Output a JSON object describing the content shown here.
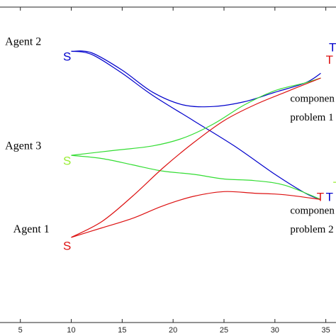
{
  "chart_data": {
    "type": "line",
    "xlim": [
      3,
      36
    ],
    "ylim": [
      0,
      1
    ],
    "x_ticks": [
      5,
      10,
      15,
      20,
      25,
      30,
      35
    ],
    "grid": false,
    "series": [
      {
        "color": "#0000cc",
        "points": [
          [
            10,
            0.86
          ],
          [
            12,
            0.85
          ],
          [
            15,
            0.79
          ],
          [
            18,
            0.72
          ],
          [
            22,
            0.64
          ],
          [
            26,
            0.56
          ],
          [
            30,
            0.47
          ],
          [
            33,
            0.41
          ],
          [
            34.5,
            0.39
          ]
        ]
      },
      {
        "color": "#0000cc",
        "points": [
          [
            10,
            0.86
          ],
          [
            12,
            0.855
          ],
          [
            15,
            0.8
          ],
          [
            18,
            0.73
          ],
          [
            21,
            0.69
          ],
          [
            24,
            0.685
          ],
          [
            27,
            0.7
          ],
          [
            30,
            0.73
          ],
          [
            33,
            0.76
          ],
          [
            34.5,
            0.79
          ]
        ]
      },
      {
        "color": "#33dd33",
        "points": [
          [
            10,
            0.53
          ],
          [
            14,
            0.545
          ],
          [
            18,
            0.56
          ],
          [
            21,
            0.585
          ],
          [
            24,
            0.63
          ],
          [
            27,
            0.69
          ],
          [
            30,
            0.735
          ],
          [
            33,
            0.76
          ],
          [
            34.5,
            0.775
          ]
        ]
      },
      {
        "color": "#33dd33",
        "points": [
          [
            10,
            0.53
          ],
          [
            13,
            0.52
          ],
          [
            16,
            0.5
          ],
          [
            19,
            0.48
          ],
          [
            22,
            0.47
          ],
          [
            25,
            0.455
          ],
          [
            28,
            0.45
          ],
          [
            31,
            0.435
          ],
          [
            34.5,
            0.39
          ]
        ]
      },
      {
        "color": "#dd1111",
        "points": [
          [
            10,
            0.27
          ],
          [
            13,
            0.32
          ],
          [
            16,
            0.4
          ],
          [
            19,
            0.49
          ],
          [
            22,
            0.57
          ],
          [
            25,
            0.64
          ],
          [
            28,
            0.69
          ],
          [
            31,
            0.73
          ],
          [
            34.5,
            0.775
          ]
        ]
      },
      {
        "color": "#dd1111",
        "points": [
          [
            10,
            0.27
          ],
          [
            13,
            0.3
          ],
          [
            16,
            0.33
          ],
          [
            19,
            0.37
          ],
          [
            22,
            0.4
          ],
          [
            25,
            0.415
          ],
          [
            28,
            0.41
          ],
          [
            31,
            0.405
          ],
          [
            34.5,
            0.39
          ]
        ]
      }
    ],
    "agents": [
      {
        "label": "Agent 2",
        "x": 3.5,
        "y": 0.88
      },
      {
        "label": "Agent 3",
        "x": 3.5,
        "y": 0.55
      },
      {
        "label": "Agent 1",
        "x": 4.3,
        "y": 0.285
      }
    ],
    "markers": [
      {
        "text": "S",
        "color": "#0000cc",
        "x": 9.2,
        "y": 0.83
      },
      {
        "text": "S",
        "color": "#99ee33",
        "x": 9.2,
        "y": 0.5
      },
      {
        "text": "S",
        "color": "#dd1111",
        "x": 9.2,
        "y": 0.23
      },
      {
        "text": "T",
        "color": "#0000cc",
        "x": 35.3,
        "y": 0.86
      },
      {
        "text": "T",
        "color": "#dd1111",
        "x": 35.0,
        "y": 0.82
      },
      {
        "text": "T",
        "color": "#99ee33",
        "x": 36.7,
        "y": 0.83
      },
      {
        "text": "T",
        "color": "#99ee33",
        "x": 35.7,
        "y": 0.42
      },
      {
        "text": "T",
        "color": "#dd1111",
        "x": 34.1,
        "y": 0.385
      },
      {
        "text": "T",
        "color": "#0000cc",
        "x": 35.0,
        "y": 0.385
      }
    ],
    "annotations": [
      {
        "text": "componen",
        "x": 31.5,
        "y": 0.7
      },
      {
        "text": "problem 1",
        "x": 31.5,
        "y": 0.64
      },
      {
        "text": "componen",
        "x": 31.5,
        "y": 0.345
      },
      {
        "text": "problem 2",
        "x": 31.5,
        "y": 0.285
      }
    ]
  }
}
